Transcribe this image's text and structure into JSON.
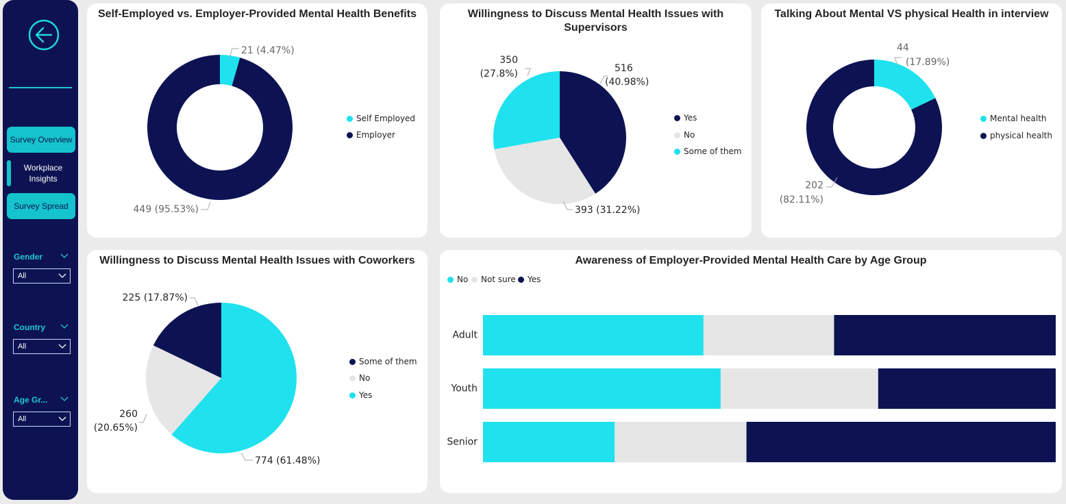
{
  "colors": {
    "cyan": "#1fe2ee",
    "navy": "#0d1352",
    "grey": "#e6e6e6"
  },
  "sidebar": {
    "back_icon": "back-arrow-icon",
    "nav": [
      {
        "label": "Survey Overview"
      },
      {
        "label": "Workplace Insights",
        "active": true
      },
      {
        "label": "Survey Spread"
      }
    ],
    "slicers": [
      {
        "label": "Gender",
        "value": "All"
      },
      {
        "label": "Country",
        "value": "All"
      },
      {
        "label": "Age Gr...",
        "value": "All"
      }
    ]
  },
  "charts": {
    "self_employed": {
      "title": "Self-Employed vs. Employer-Provided Mental Health Benefits",
      "legend": [
        "Self Employed",
        "Employer"
      ],
      "labels": [
        "21 (4.47%)",
        "449 (95.53%)"
      ]
    },
    "supervisors": {
      "title_line1": "Willingness to Discuss Mental Health Issues with",
      "title_line2": "Supervisors",
      "legend": [
        "Yes",
        "No",
        "Some of them"
      ],
      "labels": {
        "yes_1": "516",
        "yes_2": "(40.98%)",
        "no": "393 (31.22%)",
        "some_1": "350",
        "some_2": "(27.8%)"
      }
    },
    "interview": {
      "title": "Talking About Mental VS physical Health in interview",
      "legend": [
        "Mental health",
        "physical health"
      ],
      "labels": {
        "mental_1": "44",
        "mental_2": "(17.89%)",
        "physical_1": "202",
        "physical_2": "(82.11%)"
      }
    },
    "coworkers": {
      "title": "Willingness to Discuss Mental Health Issues with Coworkers",
      "legend": [
        "Some of them",
        "No",
        "Yes"
      ],
      "labels": {
        "some": "774 (61.48%)",
        "no_1": "260",
        "no_2": "(20.65%)",
        "yes": "225 (17.87%)"
      }
    },
    "awareness": {
      "title": "Awareness of Employer-Provided Mental Health Care by Age Group",
      "legend": [
        "No",
        "Not sure",
        "Yes"
      ],
      "categories": [
        "Adult",
        "Youth",
        "Senior"
      ]
    }
  },
  "chart_data": [
    {
      "type": "pie",
      "title": "Self-Employed vs. Employer-Provided Mental Health Benefits",
      "series": [
        {
          "name": "Self Employed",
          "value": 21,
          "pct": 4.47
        },
        {
          "name": "Employer",
          "value": 449,
          "pct": 95.53
        }
      ]
    },
    {
      "type": "pie",
      "title": "Willingness to Discuss Mental Health Issues with Supervisors",
      "series": [
        {
          "name": "Yes",
          "value": 516,
          "pct": 40.98
        },
        {
          "name": "No",
          "value": 393,
          "pct": 31.22
        },
        {
          "name": "Some of them",
          "value": 350,
          "pct": 27.8
        }
      ]
    },
    {
      "type": "pie",
      "title": "Talking About Mental VS physical Health in interview",
      "series": [
        {
          "name": "Mental health",
          "value": 44,
          "pct": 17.89
        },
        {
          "name": "physical health",
          "value": 202,
          "pct": 82.11
        }
      ]
    },
    {
      "type": "pie",
      "title": "Willingness to Discuss Mental Health Issues with Coworkers",
      "series": [
        {
          "name": "Some of them",
          "value": 774,
          "pct": 61.48
        },
        {
          "name": "No",
          "value": 260,
          "pct": 20.65
        },
        {
          "name": "Yes",
          "value": 225,
          "pct": 17.87
        }
      ]
    },
    {
      "type": "bar",
      "orientation": "horizontal-stacked-100",
      "title": "Awareness of Employer-Provided Mental Health Care by Age Group",
      "categories": [
        "Adult",
        "Youth",
        "Senior"
      ],
      "series": [
        {
          "name": "No",
          "values": [
            38.5,
            41.5,
            23
          ]
        },
        {
          "name": "Not sure",
          "values": [
            22.8,
            27.5,
            23
          ]
        },
        {
          "name": "Yes",
          "values": [
            38.7,
            31.0,
            54
          ]
        }
      ],
      "legend_position": "top-left"
    }
  ]
}
